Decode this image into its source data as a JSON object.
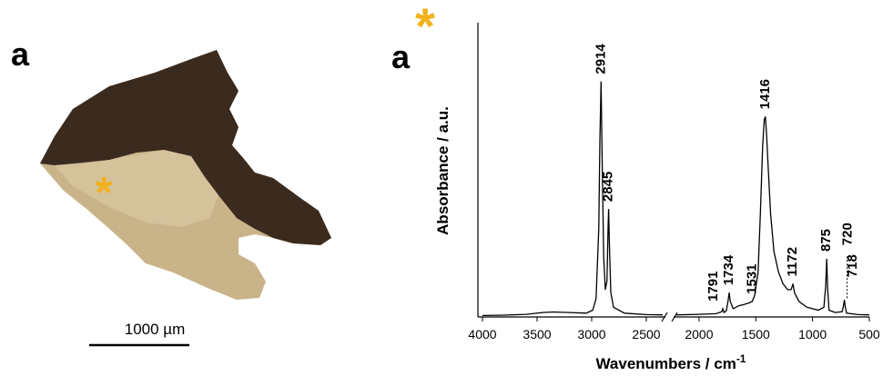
{
  "photo": {
    "label": "a",
    "marker": "*",
    "scale_bar": "1000 µm"
  },
  "chart_data": {
    "type": "line",
    "label": "a",
    "marker": "*",
    "xlabel": "Wavenumbers / cm",
    "xlabel_sup": "-1",
    "ylabel": "Absorbance / a.u.",
    "xlim": [
      4000,
      500
    ],
    "xbreak": [
      2350,
      2200
    ],
    "ylim": [
      0,
      1
    ],
    "xticks": [
      4000,
      3500,
      3000,
      2500,
      2000,
      1500,
      1000,
      500
    ],
    "color": "#000000",
    "x": [
      4000,
      3800,
      3600,
      3450,
      3350,
      3200,
      3050,
      2990,
      2960,
      2935,
      2925,
      2914,
      2905,
      2890,
      2875,
      2860,
      2850,
      2845,
      2838,
      2825,
      2800,
      2700,
      2500,
      2350,
      2300,
      2200,
      2000,
      1850,
      1800,
      1791,
      1780,
      1760,
      1745,
      1734,
      1725,
      1700,
      1650,
      1600,
      1560,
      1531,
      1510,
      1480,
      1460,
      1440,
      1425,
      1416,
      1405,
      1390,
      1370,
      1340,
      1300,
      1260,
      1220,
      1190,
      1172,
      1160,
      1120,
      1050,
      950,
      900,
      885,
      875,
      868,
      855,
      800,
      740,
      730,
      720,
      712,
      700,
      600,
      500
    ],
    "values": [
      0.002,
      0.003,
      0.006,
      0.012,
      0.014,
      0.012,
      0.01,
      0.02,
      0.06,
      0.3,
      0.6,
      0.8,
      0.55,
      0.2,
      0.09,
      0.12,
      0.3,
      0.365,
      0.25,
      0.08,
      0.03,
      0.01,
      0.005,
      0.004,
      null,
      0.004,
      0.006,
      0.008,
      0.015,
      0.025,
      0.012,
      0.018,
      0.05,
      0.08,
      0.05,
      0.025,
      0.035,
      0.04,
      0.045,
      0.05,
      0.07,
      0.15,
      0.35,
      0.58,
      0.67,
      0.68,
      0.62,
      0.5,
      0.35,
      0.22,
      0.15,
      0.11,
      0.09,
      0.09,
      0.11,
      0.08,
      0.05,
      0.03,
      0.02,
      0.03,
      0.1,
      0.195,
      0.1,
      0.02,
      0.012,
      0.015,
      0.03,
      0.055,
      0.03,
      0.01,
      0.005,
      0.004
    ],
    "peak_labels": [
      2914,
      2845,
      1791,
      1734,
      1531,
      1416,
      1172,
      875,
      720,
      718
    ]
  }
}
